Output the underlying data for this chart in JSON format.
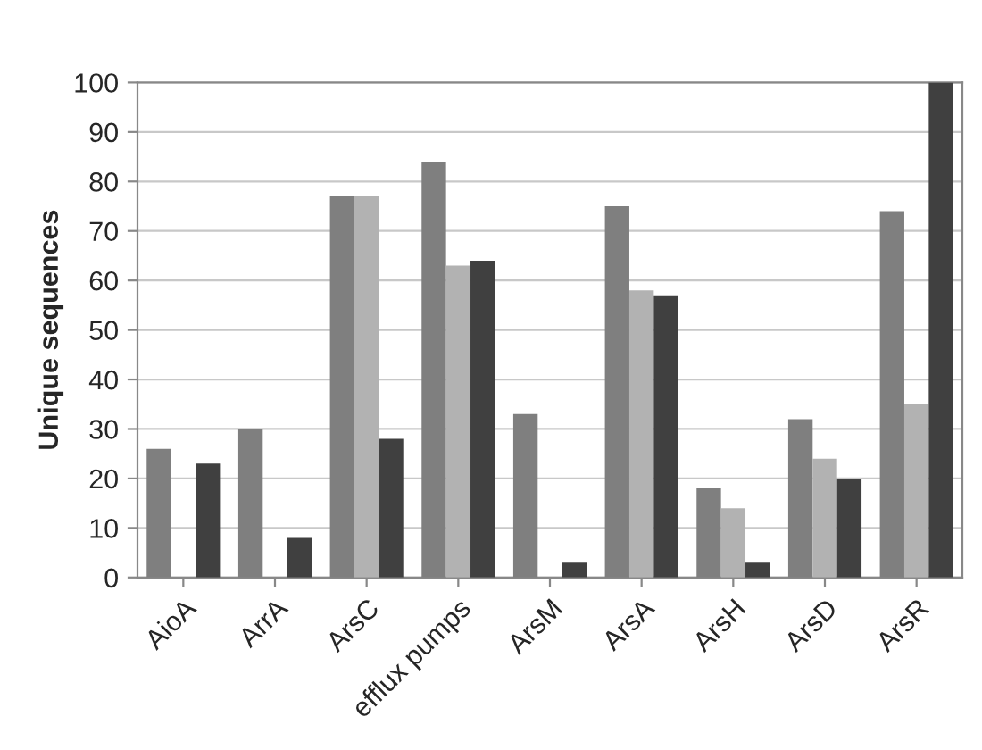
{
  "chart_data": {
    "type": "bar",
    "ylabel": "Unique sequences",
    "categories": [
      "AioA",
      "ArrA",
      "ArsC",
      "efflux pumps",
      "ArsM",
      "ArsA",
      "ArsH",
      "ArsD",
      "ArsR"
    ],
    "series": [
      {
        "color": "#7f7f7f",
        "values": [
          26,
          30,
          77,
          84,
          33,
          75,
          18,
          32,
          74
        ]
      },
      {
        "color": "#b2b2b2",
        "values": [
          null,
          null,
          77,
          63,
          null,
          58,
          14,
          24,
          35
        ]
      },
      {
        "color": "#404040",
        "values": [
          23,
          8,
          28,
          64,
          3,
          57,
          3,
          20,
          100
        ]
      }
    ],
    "ylim": [
      0,
      100
    ],
    "yticks": [
      0,
      10,
      20,
      30,
      40,
      50,
      60,
      70,
      80,
      90,
      100
    ],
    "grid": "y"
  }
}
